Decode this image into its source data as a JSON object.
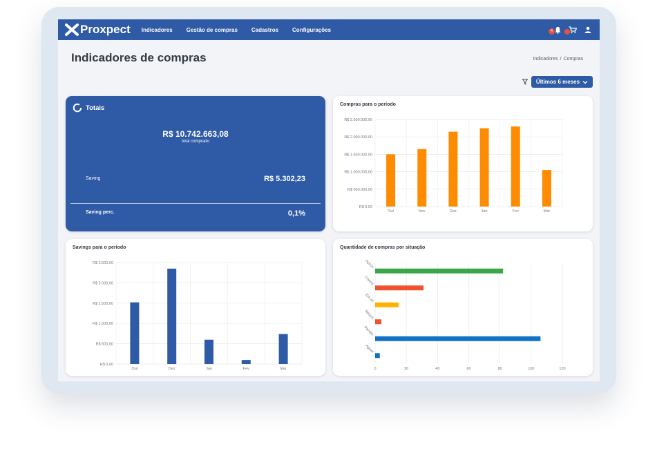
{
  "app": {
    "brand": "Proxpect"
  },
  "nav": {
    "items": [
      {
        "label": "Indicadores"
      },
      {
        "label": "Gestão de compras"
      },
      {
        "label": "Cadastros"
      },
      {
        "label": "Configurações"
      }
    ]
  },
  "notifications": {
    "count": "4"
  },
  "header": {
    "title": "Indicadores de compras"
  },
  "breadcrumb": {
    "items": [
      "Indicadores",
      "Compras"
    ],
    "separator": "/"
  },
  "filter": {
    "period_label": "Últimos 6 meses"
  },
  "totals": {
    "title": "Totais",
    "total_value": "R$ 10.742.663,08",
    "total_label": "total comprado",
    "saving_label": "Saving",
    "saving_value": "R$ 5.302,23",
    "saving_perc_label": "Saving perc.",
    "saving_perc_value": "0,1%"
  },
  "colors": {
    "brand": "#2e5aa6",
    "orange": "#ff8c00",
    "green": "#3aa648",
    "red": "#f0522f",
    "amber": "#ffb300",
    "blue": "#1372c6"
  },
  "chart_data": [
    {
      "id": "compras",
      "type": "bar",
      "title": "Compras para o período",
      "categories": [
        "Out",
        "Nov",
        "Dez",
        "Jan",
        "Fev",
        "Mar"
      ],
      "values": [
        1500000,
        1650000,
        2150000,
        2250000,
        2300000,
        1050000
      ],
      "ylim": [
        0,
        2500000
      ],
      "yticks": [
        0,
        500000,
        1000000,
        1500000,
        2000000,
        2500000
      ],
      "ytick_labels": [
        "R$ 0,00",
        "R$ 500.000,00",
        "R$ 1.000.000,00",
        "R$ 1.500.000,00",
        "R$ 2.000.000,00",
        "R$ 2.500.000,00"
      ],
      "color": "#ff8c00",
      "grid": true
    },
    {
      "id": "savings",
      "type": "bar",
      "title": "Savings para o período",
      "categories": [
        "Out",
        "Dez",
        "Jan",
        "Fev",
        "Mar"
      ],
      "values": [
        1520,
        2350,
        600,
        100,
        740
      ],
      "ylim": [
        0,
        2500
      ],
      "yticks": [
        0,
        500,
        1000,
        1500,
        2000,
        2500
      ],
      "ytick_labels": [
        "R$ 0,00",
        "R$ 500,00",
        "R$ 1.000,00",
        "R$ 1.500,00",
        "R$ 2.000,00",
        "R$ 2.500,00"
      ],
      "color": "#2e5aa6",
      "grid": true
    },
    {
      "id": "situacao",
      "type": "bar",
      "orientation": "horizontal",
      "title": "Quantidade de compras por situação",
      "categories": [
        "Aprov.",
        "Conce.",
        "Em at.",
        "Recus.",
        "Pendin.",
        "Aguar."
      ],
      "values": [
        82,
        31,
        15,
        4,
        106,
        3
      ],
      "colors": [
        "#3aa648",
        "#f0522f",
        "#ffb300",
        "#f0522f",
        "#1372c6",
        "#1372c6"
      ],
      "xlim": [
        0,
        120
      ],
      "xticks": [
        0,
        20,
        40,
        60,
        80,
        100,
        120
      ],
      "xtick_labels": [
        "0",
        "20",
        "40",
        "60",
        "80",
        "100",
        "120"
      ],
      "grid": true
    }
  ]
}
